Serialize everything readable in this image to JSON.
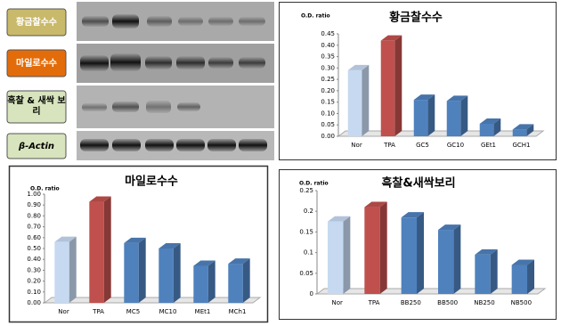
{
  "blot": {
    "labels": [
      "황금찰수수",
      "마일로수수",
      "흑찰 & 새싹 보리",
      "β-Actin"
    ]
  },
  "chart_data": [
    {
      "type": "bar",
      "title": "황금찰수수",
      "y_label": "O.D. ratio",
      "categories": [
        "Nor",
        "TPA",
        "GC5",
        "GC10",
        "GEt1",
        "GCH1"
      ],
      "values": [
        0.29,
        0.42,
        0.16,
        0.155,
        0.055,
        0.03
      ],
      "colors": [
        "#c6d9f1",
        "#c0504d",
        "#4f81bd",
        "#4f81bd",
        "#4f81bd",
        "#4f81bd"
      ],
      "ylim": [
        0,
        0.45
      ],
      "yticks": [
        {
          "value": 0,
          "label": "0.00"
        },
        {
          "value": 0.05,
          "label": "0.05"
        },
        {
          "value": 0.1,
          "label": "0.10"
        },
        {
          "value": 0.15,
          "label": "0.15"
        },
        {
          "value": 0.2,
          "label": "0.20"
        },
        {
          "value": 0.25,
          "label": "0.25"
        },
        {
          "value": 0.3,
          "label": "0.30"
        },
        {
          "value": 0.35,
          "label": "0.35"
        },
        {
          "value": 0.4,
          "label": "0.40"
        },
        {
          "value": 0.45,
          "label": "0.45"
        }
      ]
    },
    {
      "type": "bar",
      "title": "마일로수수",
      "y_label": "O.D. ratio",
      "categories": [
        "Nor",
        "TPA",
        "MC5",
        "MC10",
        "MEt1",
        "MCh1"
      ],
      "values": [
        0.56,
        0.93,
        0.55,
        0.5,
        0.34,
        0.36
      ],
      "colors": [
        "#c6d9f1",
        "#c0504d",
        "#4f81bd",
        "#4f81bd",
        "#4f81bd",
        "#4f81bd"
      ],
      "ylim": [
        0,
        1
      ],
      "yticks": [
        {
          "value": 0,
          "label": "0.00"
        },
        {
          "value": 0.1,
          "label": "0.10"
        },
        {
          "value": 0.2,
          "label": "0.20"
        },
        {
          "value": 0.3,
          "label": "0.30"
        },
        {
          "value": 0.4,
          "label": "0.40"
        },
        {
          "value": 0.5,
          "label": "0.50"
        },
        {
          "value": 0.6,
          "label": "0.60"
        },
        {
          "value": 0.7,
          "label": "0.70"
        },
        {
          "value": 0.8,
          "label": "0.80"
        },
        {
          "value": 0.9,
          "label": "0.90"
        },
        {
          "value": 1,
          "label": "1.00"
        }
      ]
    },
    {
      "type": "bar",
      "title": "흑찰&새싹보리",
      "y_label": "O.D. ratio",
      "categories": [
        "Nor",
        "TPA",
        "BB250",
        "BB500",
        "NB250",
        "NB500"
      ],
      "values": [
        0.175,
        0.21,
        0.185,
        0.155,
        0.095,
        0.07
      ],
      "colors": [
        "#c6d9f1",
        "#c0504d",
        "#4f81bd",
        "#4f81bd",
        "#4f81bd",
        "#4f81bd"
      ],
      "ylim": [
        0,
        0.25
      ],
      "yticks": [
        0,
        0.05,
        0.1,
        0.15,
        0.2,
        0.25
      ]
    }
  ]
}
